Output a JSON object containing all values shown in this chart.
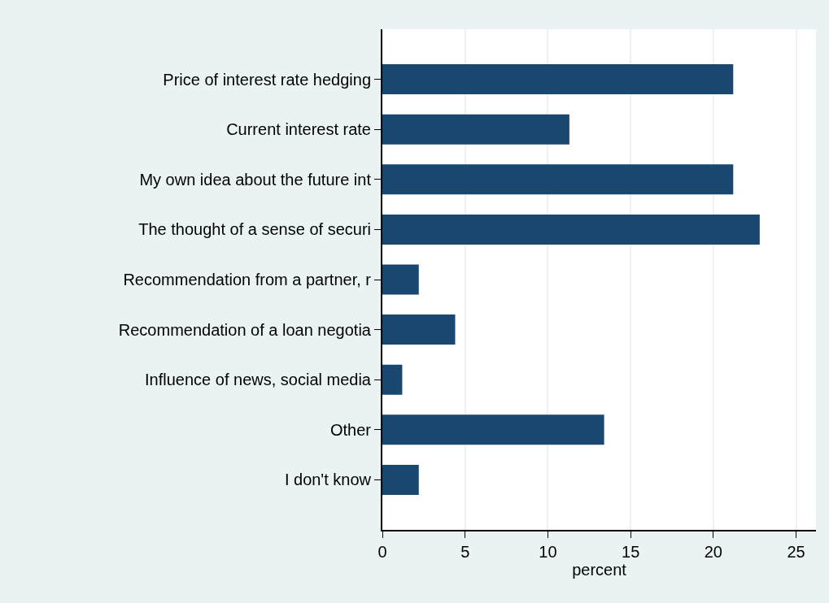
{
  "chart_data": {
    "type": "bar",
    "orientation": "horizontal",
    "xlabel": "percent",
    "categories": [
      "Price of interest rate hedging",
      "Current interest rate",
      "My own idea about the future int",
      "The thought of a sense of securi",
      "Recommendation from a partner, r",
      "Recommendation of a loan negotia",
      "Influence of news, social media",
      "Other",
      "I don't know"
    ],
    "values": [
      21.2,
      11.3,
      21.2,
      22.8,
      2.2,
      4.4,
      1.2,
      13.4,
      2.2
    ],
    "color": "#1a476f",
    "xlim": [
      0,
      26.2
    ],
    "xticks": [
      0,
      5,
      10,
      15,
      20,
      25
    ],
    "grid": "x"
  }
}
